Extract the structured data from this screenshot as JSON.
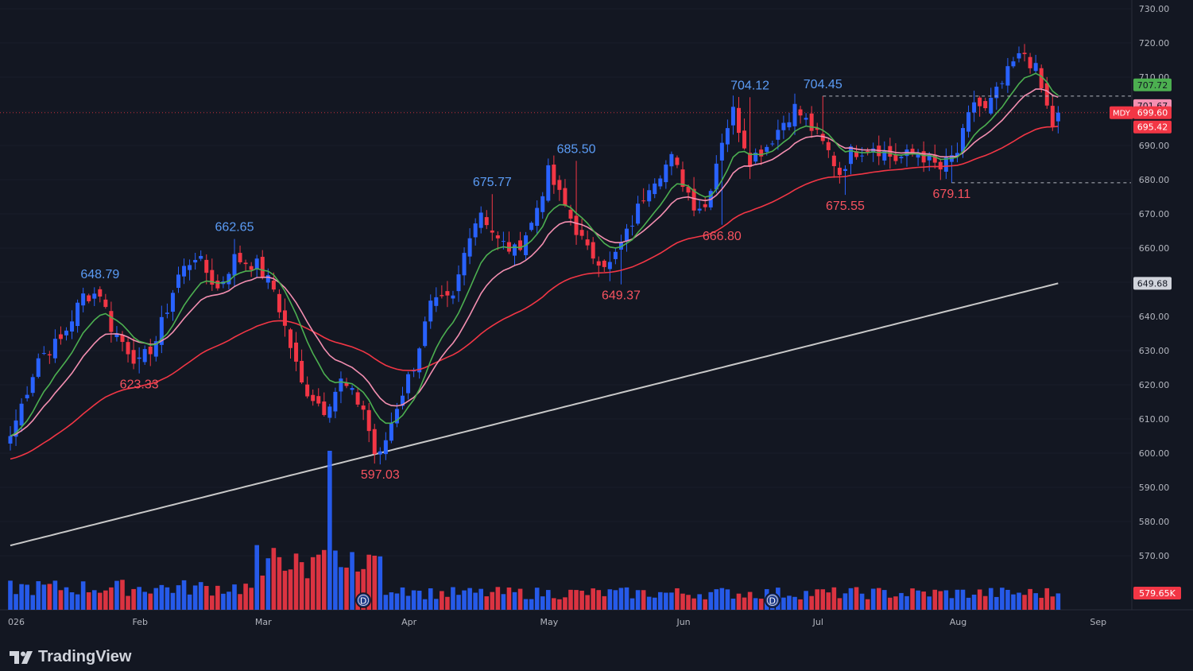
{
  "symbol": "MDY",
  "brand": "TradingView",
  "chart_data": {
    "type": "candlestick",
    "x_axis_labels": [
      {
        "label": "026",
        "index": 0
      },
      {
        "label": "Feb",
        "index": 24
      },
      {
        "label": "Mar",
        "index": 46
      },
      {
        "label": "Apr",
        "index": 72
      },
      {
        "label": "May",
        "index": 97
      },
      {
        "label": "Jun",
        "index": 121
      },
      {
        "label": "Jul",
        "index": 145
      },
      {
        "label": "Aug",
        "index": 170
      },
      {
        "label": "Sep",
        "index": 195
      }
    ],
    "y_axis": {
      "ticks": [
        "730.00",
        "720.00",
        "710.00",
        "700.00",
        "690.00",
        "680.00",
        "670.00",
        "660.00",
        "650.00",
        "640.00",
        "630.00",
        "620.00",
        "610.00",
        "600.00",
        "590.00",
        "580.00",
        "570.00"
      ],
      "min": 560,
      "max": 730
    },
    "anchors": [
      {
        "i": 0,
        "c": 605
      },
      {
        "i": 5,
        "c": 628
      },
      {
        "i": 9,
        "c": 633
      },
      {
        "i": 13,
        "c": 646
      },
      {
        "i": 16,
        "c": 647
      },
      {
        "i": 18,
        "c": 637
      },
      {
        "i": 23,
        "c": 626
      },
      {
        "i": 26,
        "c": 633
      },
      {
        "i": 30,
        "c": 652
      },
      {
        "i": 33,
        "c": 658
      },
      {
        "i": 37,
        "c": 648
      },
      {
        "i": 40,
        "c": 657
      },
      {
        "i": 44,
        "c": 655
      },
      {
        "i": 47,
        "c": 648
      },
      {
        "i": 52,
        "c": 620
      },
      {
        "i": 56,
        "c": 613
      },
      {
        "i": 59,
        "c": 621
      },
      {
        "i": 63,
        "c": 613
      },
      {
        "i": 65,
        "c": 600
      },
      {
        "i": 66,
        "c": 599
      },
      {
        "i": 69,
        "c": 614
      },
      {
        "i": 72,
        "c": 626
      },
      {
        "i": 75,
        "c": 643
      },
      {
        "i": 79,
        "c": 645
      },
      {
        "i": 82,
        "c": 665
      },
      {
        "i": 84,
        "c": 671
      },
      {
        "i": 87,
        "c": 662
      },
      {
        "i": 90,
        "c": 659
      },
      {
        "i": 93,
        "c": 667
      },
      {
        "i": 96,
        "c": 682
      },
      {
        "i": 99,
        "c": 672
      },
      {
        "i": 103,
        "c": 659
      },
      {
        "i": 107,
        "c": 655
      },
      {
        "i": 110,
        "c": 664
      },
      {
        "i": 114,
        "c": 679
      },
      {
        "i": 118,
        "c": 686
      },
      {
        "i": 122,
        "c": 673
      },
      {
        "i": 124,
        "c": 672
      },
      {
        "i": 127,
        "c": 692
      },
      {
        "i": 129,
        "c": 700
      },
      {
        "i": 132,
        "c": 686
      },
      {
        "i": 135,
        "c": 690
      },
      {
        "i": 138,
        "c": 697
      },
      {
        "i": 140,
        "c": 701
      },
      {
        "i": 143,
        "c": 695
      },
      {
        "i": 146,
        "c": 688
      },
      {
        "i": 148,
        "c": 682
      },
      {
        "i": 150,
        "c": 688
      },
      {
        "i": 154,
        "c": 690
      },
      {
        "i": 158,
        "c": 686
      },
      {
        "i": 162,
        "c": 688
      },
      {
        "i": 166,
        "c": 683
      },
      {
        "i": 169,
        "c": 688
      },
      {
        "i": 172,
        "c": 703
      },
      {
        "i": 174,
        "c": 700
      },
      {
        "i": 177,
        "c": 708
      },
      {
        "i": 179,
        "c": 714
      },
      {
        "i": 181,
        "c": 717
      },
      {
        "i": 183,
        "c": 712
      },
      {
        "i": 185,
        "c": 701
      },
      {
        "i": 186,
        "c": 696
      },
      {
        "i": 187,
        "c": 699.6
      }
    ],
    "n_bars": 188,
    "series": [
      {
        "name": "EMA-fast",
        "color": "#4caf50"
      },
      {
        "name": "EMA-mid",
        "color": "#f48fb1"
      },
      {
        "name": "EMA-slow",
        "color": "#f23645"
      },
      {
        "name": "SMA-long",
        "color": "#c8c8c8"
      }
    ],
    "price_labels": [
      {
        "text": "648.79",
        "value": 648.79,
        "index": 16,
        "kind": "high"
      },
      {
        "text": "623.33",
        "value": 623.33,
        "index": 23,
        "kind": "low"
      },
      {
        "text": "662.65",
        "value": 662.65,
        "index": 40,
        "kind": "high"
      },
      {
        "text": "597.03",
        "value": 597.03,
        "index": 66,
        "kind": "low"
      },
      {
        "text": "675.77",
        "value": 675.77,
        "index": 86,
        "kind": "high"
      },
      {
        "text": "685.50",
        "value": 685.5,
        "index": 101,
        "kind": "high"
      },
      {
        "text": "649.37",
        "value": 649.37,
        "index": 109,
        "kind": "low"
      },
      {
        "text": "666.80",
        "value": 666.8,
        "index": 127,
        "kind": "low"
      },
      {
        "text": "704.12",
        "value": 704.12,
        "index": 132,
        "kind": "high"
      },
      {
        "text": "704.45",
        "value": 704.45,
        "index": 145,
        "kind": "high"
      },
      {
        "text": "675.55",
        "value": 675.55,
        "index": 149,
        "kind": "low"
      },
      {
        "text": "679.11",
        "value": 679.11,
        "index": 168,
        "kind": "low"
      }
    ],
    "axis_badges": [
      {
        "text": "707.72",
        "value": 707.72,
        "bg": "#4caf50",
        "fg": "#131722"
      },
      {
        "text": "701.67",
        "value": 701.67,
        "bg": "#f48fb1",
        "fg": "#131722"
      },
      {
        "text": "699.60",
        "value": 699.6,
        "bg": "#f23645",
        "fg": "#ffffff"
      },
      {
        "text": "695.42",
        "value": 695.42,
        "bg": "#f23645",
        "fg": "#ffffff"
      },
      {
        "text": "649.68",
        "value": 649.68,
        "bg": "#d1d4dc",
        "fg": "#131722"
      }
    ],
    "volume_badge": {
      "text": "579.65K"
    },
    "dashed_levels": [
      {
        "value": 704.45,
        "from_index": 145
      },
      {
        "value": 679.11,
        "from_index": 168
      }
    ],
    "dividend_markers": [
      {
        "index": 63,
        "label": "D"
      },
      {
        "index": 136,
        "label": "D"
      }
    ],
    "colors": {
      "up": "#2962ff",
      "down": "#f23645",
      "bg": "#131722",
      "axis_text": "#b2b5be",
      "label_up": "#5b9cf6",
      "label_down": "#f7525f"
    }
  }
}
